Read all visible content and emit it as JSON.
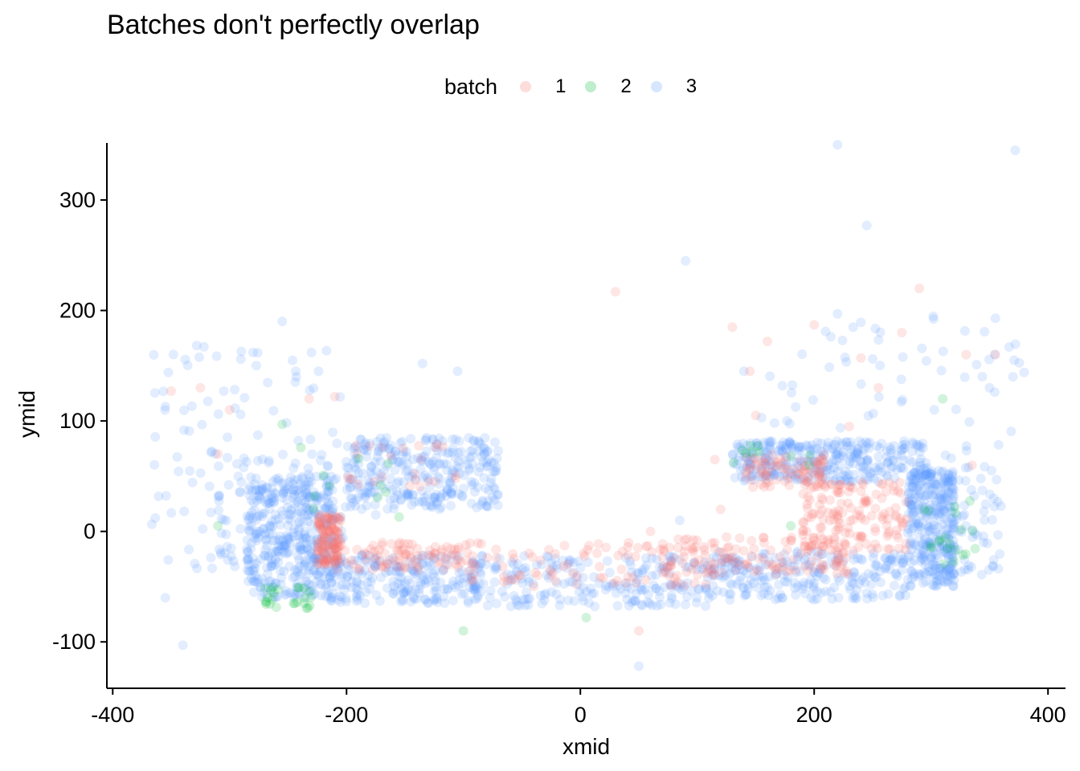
{
  "chart_data": {
    "type": "scatter",
    "title": "Batches don't perfectly overlap",
    "xlabel": "xmid",
    "ylabel": "ymid",
    "xlim": [
      -405,
      415
    ],
    "ylim": [
      -142,
      372
    ],
    "xticks": [
      -400,
      -200,
      0,
      200,
      400
    ],
    "yticks": [
      -100,
      0,
      100,
      200,
      300
    ],
    "grid": false,
    "legend": {
      "title": "batch",
      "position": "top"
    },
    "point_alpha": 0.18,
    "series": [
      {
        "name": "1",
        "color": "#F8766D",
        "clusters": [
          {
            "x": [
              -225,
              -205
            ],
            "y": [
              -30,
              15
            ],
            "n": 120
          },
          {
            "x": [
              -215,
              -100
            ],
            "y": [
              -35,
              -10
            ],
            "n": 90
          },
          {
            "x": [
              -100,
              130
            ],
            "y": [
              -50,
              -10
            ],
            "n": 100
          },
          {
            "x": [
              70,
              230
            ],
            "y": [
              -40,
              -5
            ],
            "n": 120
          },
          {
            "x": [
              190,
              280
            ],
            "y": [
              -20,
              45
            ],
            "n": 150
          },
          {
            "x": [
              140,
              210
            ],
            "y": [
              40,
              70
            ],
            "n": 80
          },
          {
            "x": [
              -200,
              -100
            ],
            "y": [
              40,
              80
            ],
            "n": 25
          }
        ],
        "points": [
          [
            30,
            217
          ],
          [
            290,
            220
          ],
          [
            -350,
            127
          ],
          [
            -325,
            130
          ],
          [
            -210,
            122
          ],
          [
            -232,
            120
          ],
          [
            130,
            185
          ],
          [
            200,
            187
          ],
          [
            160,
            172
          ],
          [
            275,
            180
          ],
          [
            240,
            157
          ],
          [
            50,
            -90
          ],
          [
            145,
            145
          ],
          [
            255,
            130
          ],
          [
            355,
            160
          ],
          [
            115,
            65
          ],
          [
            120,
            20
          ],
          [
            -300,
            110
          ],
          [
            -310,
            70
          ],
          [
            335,
            60
          ],
          [
            330,
            160
          ],
          [
            150,
            105
          ],
          [
            230,
            95
          ],
          [
            60,
            0
          ]
        ]
      },
      {
        "name": "2",
        "color": "#00BA38",
        "clusters": [
          {
            "x": [
              -270,
              -230
            ],
            "y": [
              -70,
              -50
            ],
            "n": 25
          },
          {
            "x": [
              290,
              340
            ],
            "y": [
              -30,
              30
            ],
            "n": 20
          },
          {
            "x": [
              -240,
              -140
            ],
            "y": [
              20,
              80
            ],
            "n": 10
          },
          {
            "x": [
              130,
              200
            ],
            "y": [
              60,
              80
            ],
            "n": 10
          }
        ],
        "points": [
          [
            -255,
            97
          ],
          [
            5,
            -78
          ],
          [
            -100,
            -90
          ],
          [
            -155,
            13
          ],
          [
            180,
            5
          ],
          [
            310,
            120
          ],
          [
            -310,
            5
          ]
        ]
      },
      {
        "name": "3",
        "color": "#619CFF",
        "clusters": [
          {
            "x": [
              -285,
              -210
            ],
            "y": [
              -60,
              50
            ],
            "n": 380
          },
          {
            "x": [
              -215,
              -80
            ],
            "y": [
              -65,
              -20
            ],
            "n": 230
          },
          {
            "x": [
              -80,
              110
            ],
            "y": [
              -68,
              -22
            ],
            "n": 200
          },
          {
            "x": [
              110,
              280
            ],
            "y": [
              -62,
              -18
            ],
            "n": 230
          },
          {
            "x": [
              280,
              320
            ],
            "y": [
              -50,
              55
            ],
            "n": 320
          },
          {
            "x": [
              130,
              300
            ],
            "y": [
              45,
              82
            ],
            "n": 330
          },
          {
            "x": [
              -200,
              -70
            ],
            "y": [
              20,
              85
            ],
            "n": 300
          },
          {
            "x": [
              -310,
              -200
            ],
            "y": [
              -40,
              70
            ],
            "n": 110
          },
          {
            "x": [
              310,
              360
            ],
            "y": [
              -40,
              80
            ],
            "n": 70
          },
          {
            "x": [
              -370,
              -200
            ],
            "y": [
              60,
              170
            ],
            "n": 55
          },
          {
            "x": [
              160,
              380
            ],
            "y": [
              90,
              200
            ],
            "n": 55
          },
          {
            "x": [
              -370,
              -300
            ],
            "y": [
              -40,
              60
            ],
            "n": 25
          }
        ],
        "points": [
          [
            220,
            350
          ],
          [
            372,
            345
          ],
          [
            245,
            277
          ],
          [
            90,
            245
          ],
          [
            220,
            197
          ],
          [
            50,
            -122
          ],
          [
            -340,
            -103
          ],
          [
            -355,
            -60
          ],
          [
            -305,
            127
          ],
          [
            -280,
            162
          ],
          [
            -290,
            163
          ],
          [
            -255,
            190
          ],
          [
            -230,
            162
          ],
          [
            -135,
            152
          ],
          [
            -105,
            145
          ],
          [
            140,
            145
          ],
          [
            355,
            193
          ],
          [
            370,
            140
          ],
          [
            -200,
            58
          ],
          [
            -175,
            15
          ],
          [
            155,
            103
          ],
          [
            350,
            130
          ],
          [
            85,
            10
          ]
        ]
      }
    ]
  }
}
